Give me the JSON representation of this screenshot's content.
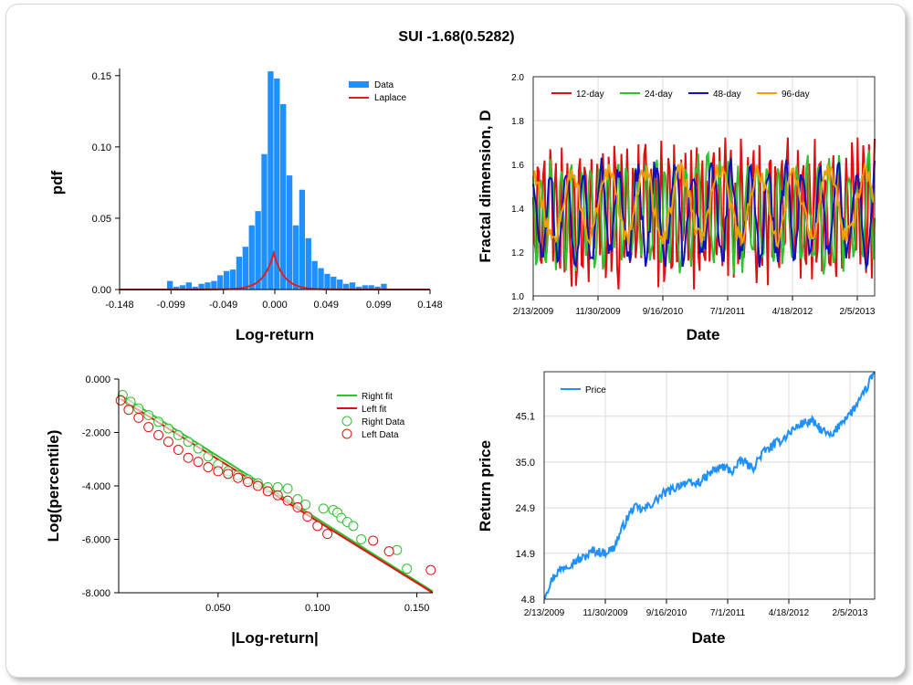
{
  "title": "SUI -1.68(0.5282)",
  "chart_data": [
    {
      "type": "bar",
      "xlabel": "Log-return",
      "ylabel": "pdf",
      "xlim": [
        -0.148,
        0.148
      ],
      "ylim": [
        0,
        0.155
      ],
      "x_ticks": [
        "-0.148",
        "-0.099",
        "-0.049",
        "0.000",
        "0.049",
        "0.099",
        "0.148"
      ],
      "x_tick_values": [
        -0.148,
        -0.099,
        -0.049,
        0.0,
        0.049,
        0.099,
        0.148
      ],
      "y_ticks": [
        "0.00",
        "0.05",
        "0.10",
        "0.15"
      ],
      "y_tick_values": [
        0.0,
        0.05,
        0.1,
        0.15
      ],
      "legend": [
        "Data",
        "Laplace"
      ],
      "legend_position": "top-right",
      "colors": {
        "bars": "#1e90ff",
        "fit": "#e02020"
      },
      "bars": {
        "width": 0.0055,
        "x": [
          -0.1,
          -0.094,
          -0.088,
          -0.082,
          -0.076,
          -0.07,
          -0.064,
          -0.058,
          -0.052,
          -0.046,
          -0.04,
          -0.034,
          -0.028,
          -0.022,
          -0.016,
          -0.01,
          -0.004,
          0.002,
          0.008,
          0.014,
          0.02,
          0.026,
          0.032,
          0.038,
          0.044,
          0.05,
          0.056,
          0.062,
          0.068,
          0.074,
          0.08,
          0.086,
          0.092,
          0.098,
          0.104
        ],
        "y": [
          0.006,
          0.002,
          0.003,
          0.005,
          0.002,
          0.004,
          0.005,
          0.006,
          0.01,
          0.013,
          0.014,
          0.023,
          0.03,
          0.045,
          0.055,
          0.095,
          0.153,
          0.148,
          0.13,
          0.08,
          0.045,
          0.07,
          0.036,
          0.02,
          0.015,
          0.011,
          0.009,
          0.007,
          0.004,
          0.005,
          0.002,
          0.003,
          0.003,
          0.002,
          0.004
        ]
      },
      "laplace": {
        "mu": -0.001,
        "b": 0.0098
      }
    },
    {
      "type": "line",
      "xlabel": "Date",
      "ylabel": "Fractal dimension, D",
      "ylim": [
        1.0,
        2.0
      ],
      "x_ticks": [
        "2/13/2009",
        "11/30/2009",
        "9/16/2010",
        "7/1/2011",
        "4/18/2012",
        "2/5/2013"
      ],
      "y_ticks": [
        "1.0",
        "1.2",
        "1.4",
        "1.6",
        "1.8",
        "2.0"
      ],
      "y_tick_values": [
        1.0,
        1.2,
        1.4,
        1.6,
        1.8,
        2.0
      ],
      "legend_position": "top-left",
      "series": [
        {
          "name": "12-day",
          "color": "#e01010",
          "period": 4,
          "amp": 0.28,
          "center": 1.38,
          "seed": 11
        },
        {
          "name": "24-day",
          "color": "#30c030",
          "period": 7,
          "amp": 0.22,
          "center": 1.38,
          "seed": 23
        },
        {
          "name": "48-day",
          "color": "#1010c0",
          "period": 13,
          "amp": 0.2,
          "center": 1.38,
          "seed": 37
        },
        {
          "name": "96-day",
          "color": "#f0a000",
          "period": 26,
          "amp": 0.15,
          "center": 1.42,
          "seed": 53
        }
      ]
    },
    {
      "type": "scatter",
      "xlabel": "|Log-return|",
      "ylabel": "Log(percentile)",
      "xlim": [
        0.0,
        0.158
      ],
      "ylim": [
        -8.0,
        0.0
      ],
      "x_ticks": [
        "0.050",
        "0.100",
        "0.150"
      ],
      "x_tick_values": [
        0.05,
        0.1,
        0.15
      ],
      "y_ticks": [
        "0.000",
        "-2.000",
        "-4.000",
        "-6.000",
        "-8.000"
      ],
      "y_tick_values": [
        0.0,
        -2.0,
        -4.0,
        -6.0,
        -8.0
      ],
      "legend": [
        "Right fit",
        "Left fit",
        "Right Data",
        "Left Data"
      ],
      "legend_position": "top-right",
      "colors": {
        "right": "#30c030",
        "left": "#e01010"
      },
      "right_fit": {
        "x": [
          0.0,
          0.158
        ],
        "y": [
          -0.55,
          -7.95
        ]
      },
      "left_fit": {
        "x": [
          0.0,
          0.158
        ],
        "y": [
          -0.7,
          -8.0
        ]
      },
      "right_data": {
        "x": [
          0.002,
          0.006,
          0.01,
          0.015,
          0.02,
          0.025,
          0.03,
          0.035,
          0.04,
          0.045,
          0.05,
          0.055,
          0.06,
          0.065,
          0.07,
          0.075,
          0.08,
          0.085,
          0.09,
          0.094,
          0.103,
          0.108,
          0.11,
          0.112,
          0.115,
          0.118,
          0.122,
          0.14,
          0.145
        ],
        "y": [
          -0.6,
          -0.85,
          -1.1,
          -1.35,
          -1.6,
          -1.85,
          -2.1,
          -2.35,
          -2.6,
          -2.9,
          -3.2,
          -3.45,
          -3.6,
          -3.75,
          -3.9,
          -4.05,
          -4.05,
          -4.1,
          -4.5,
          -4.7,
          -4.85,
          -4.9,
          -5.0,
          -5.2,
          -5.35,
          -5.5,
          -6.0,
          -6.4,
          -7.1
        ]
      },
      "left_data": {
        "x": [
          0.001,
          0.005,
          0.01,
          0.015,
          0.02,
          0.025,
          0.03,
          0.035,
          0.04,
          0.045,
          0.05,
          0.055,
          0.06,
          0.065,
          0.07,
          0.075,
          0.08,
          0.085,
          0.09,
          0.095,
          0.1,
          0.105,
          0.128,
          0.136,
          0.157
        ],
        "y": [
          -0.8,
          -1.15,
          -1.45,
          -1.8,
          -2.1,
          -2.35,
          -2.65,
          -2.95,
          -3.1,
          -3.3,
          -3.45,
          -3.55,
          -3.7,
          -3.85,
          -4.0,
          -4.2,
          -4.35,
          -4.55,
          -4.8,
          -5.15,
          -5.5,
          -5.8,
          -6.05,
          -6.45,
          -7.15
        ]
      }
    },
    {
      "type": "line",
      "xlabel": "Date",
      "ylabel": "Return price",
      "ylim": [
        4.8,
        54.9
      ],
      "x_ticks": [
        "2/13/2009",
        "11/30/2009",
        "9/16/2010",
        "7/1/2011",
        "4/18/2012",
        "2/5/2013"
      ],
      "y_ticks": [
        "4.8",
        "14.9",
        "24.9",
        "35.0",
        "45.1"
      ],
      "y_tick_values": [
        4.8,
        14.9,
        24.9,
        35.0,
        45.1
      ],
      "legend_position": "top-left",
      "series": [
        {
          "name": "Price",
          "color": "#1e90ff",
          "x": [
            0.0,
            0.03,
            0.06,
            0.09,
            0.12,
            0.15,
            0.18,
            0.21,
            0.24,
            0.27,
            0.3,
            0.33,
            0.36,
            0.39,
            0.42,
            0.45,
            0.48,
            0.51,
            0.54,
            0.57,
            0.6,
            0.63,
            0.66,
            0.69,
            0.72,
            0.75,
            0.78,
            0.81,
            0.84,
            0.87,
            0.9,
            0.93,
            0.96,
            1.0
          ],
          "y": [
            5.5,
            10.0,
            12.0,
            13.0,
            14.0,
            15.5,
            15.0,
            16.0,
            21.0,
            25.0,
            24.5,
            26.0,
            28.0,
            29.0,
            30.5,
            30.0,
            31.0,
            33.0,
            34.0,
            33.0,
            35.5,
            33.5,
            37.0,
            38.5,
            40.0,
            42.0,
            43.5,
            44.0,
            42.0,
            40.5,
            44.0,
            46.0,
            49.0,
            55.0
          ]
        }
      ]
    }
  ]
}
